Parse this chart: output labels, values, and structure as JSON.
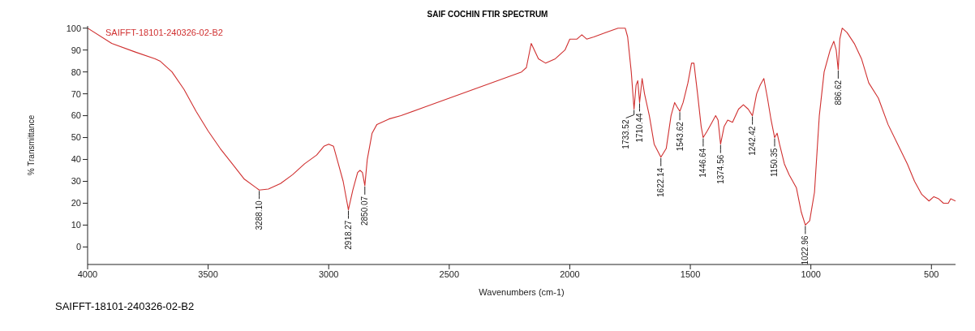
{
  "chart_data": {
    "type": "line",
    "title": "SAIF COCHIN FTIR SPECTRUM",
    "xlabel": "Wavenumbers (cm-1)",
    "ylabel": "% Transmittance",
    "xlim": [
      4000,
      400
    ],
    "ylim": [
      -8,
      101
    ],
    "xticks": [
      4000,
      3500,
      3000,
      2500,
      2000,
      1500,
      1000,
      500
    ],
    "yticks": [
      0,
      10,
      20,
      30,
      40,
      50,
      60,
      70,
      80,
      90,
      100
    ],
    "grid": false,
    "legend": false,
    "marker": "none",
    "line_style": "solid",
    "x": [
      4000,
      3900,
      3800,
      3720,
      3700,
      3650,
      3600,
      3550,
      3500,
      3450,
      3400,
      3350,
      3300,
      3288.1,
      3250,
      3200,
      3150,
      3100,
      3050,
      3020,
      3000,
      2980,
      2960,
      2940,
      2918.27,
      2900,
      2880,
      2870,
      2860,
      2850.07,
      2840,
      2820,
      2800,
      2750,
      2700,
      2600,
      2500,
      2400,
      2300,
      2200,
      2180,
      2160,
      2130,
      2100,
      2060,
      2020,
      2000,
      1970,
      1950,
      1930,
      1900,
      1850,
      1800,
      1770,
      1760,
      1745,
      1733.52,
      1725,
      1718,
      1710.44,
      1700,
      1690,
      1670,
      1650,
      1622.14,
      1600,
      1580,
      1565,
      1555,
      1543.62,
      1530,
      1510,
      1495,
      1485,
      1470,
      1455,
      1446.64,
      1430,
      1410,
      1395,
      1385,
      1374.56,
      1360,
      1345,
      1325,
      1300,
      1280,
      1260,
      1242.42,
      1225,
      1210,
      1195,
      1180,
      1165,
      1150.35,
      1140,
      1130,
      1110,
      1090,
      1060,
      1040,
      1022.96,
      1005,
      985,
      965,
      945,
      920,
      905,
      895,
      886.62,
      880,
      870,
      850,
      820,
      790,
      760,
      720,
      680,
      640,
      600,
      570,
      540,
      510,
      490,
      470,
      450,
      430,
      420,
      400
    ],
    "series": [
      {
        "name": "SAIFFT-18101-240326-02-B2",
        "color": "#d03030",
        "values": [
          100,
          93,
          89,
          86,
          85,
          80,
          72,
          62,
          53,
          45,
          38,
          31,
          27,
          26,
          26.5,
          29,
          33,
          38,
          42,
          46,
          47,
          46,
          38,
          30,
          17,
          26,
          34,
          35,
          34,
          28,
          40,
          52,
          56,
          58.5,
          60,
          64,
          68,
          72,
          76,
          80,
          82,
          93,
          86,
          84,
          86,
          90,
          95,
          95,
          97,
          95,
          96,
          98,
          100,
          100,
          96,
          80,
          63,
          74,
          76,
          66,
          77,
          70,
          60,
          47,
          41,
          45,
          60,
          66,
          64,
          62,
          66,
          75,
          84,
          84,
          70,
          55,
          50,
          53,
          57,
          60,
          58,
          47,
          55,
          58,
          57,
          63,
          65,
          63,
          60,
          70,
          74,
          77,
          68,
          58,
          50,
          52,
          47,
          38,
          33,
          27,
          16,
          10,
          12,
          25,
          60,
          80,
          90,
          94,
          90,
          81,
          95,
          100,
          98,
          93,
          86,
          75,
          68,
          56,
          47,
          38,
          30,
          24,
          21,
          23,
          22,
          20,
          20,
          22,
          21
        ]
      }
    ],
    "annotations": [
      {
        "text": "3288.10",
        "x": 3288.1,
        "y": 26
      },
      {
        "text": "2918.27",
        "x": 2918.27,
        "y": 17
      },
      {
        "text": "2850.07",
        "x": 2850.07,
        "y": 28
      },
      {
        "text": "1733.52",
        "x": 1733.52,
        "y": 63
      },
      {
        "text": "1710.44",
        "x": 1710.44,
        "y": 66
      },
      {
        "text": "1622.14",
        "x": 1622.14,
        "y": 41
      },
      {
        "text": "1543.62",
        "x": 1543.62,
        "y": 62
      },
      {
        "text": "1446.64",
        "x": 1446.64,
        "y": 50
      },
      {
        "text": "1374.56",
        "x": 1374.56,
        "y": 47
      },
      {
        "text": "1242.42",
        "x": 1242.42,
        "y": 60
      },
      {
        "text": "1150.35",
        "x": 1150.35,
        "y": 50
      },
      {
        "text": "1022.96",
        "x": 1022.96,
        "y": 10
      },
      {
        "text": "886.62",
        "x": 886.62,
        "y": 81
      },
      "SAIFFT-18101-240326-02-B2"
    ]
  }
}
